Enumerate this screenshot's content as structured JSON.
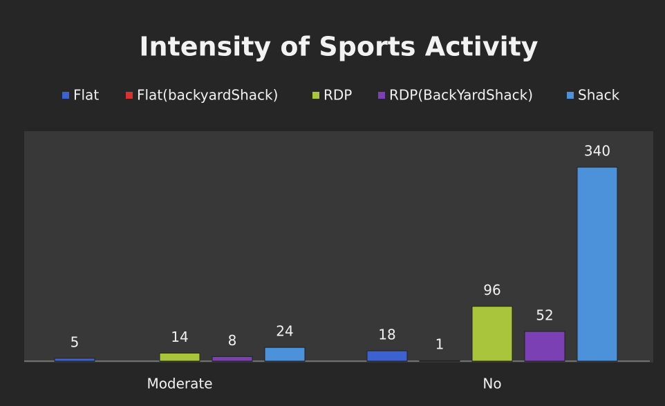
{
  "chart_data": {
    "type": "bar",
    "title": "Intensity of Sports Activity",
    "categories": [
      "Moderate",
      "No"
    ],
    "series": [
      {
        "name": "Flat",
        "color": "#3b62d0",
        "values": [
          5,
          18
        ]
      },
      {
        "name": "Flat(backyardShack)",
        "color": "#d63232",
        "values": [
          null,
          1
        ]
      },
      {
        "name": "RDP",
        "color": "#a9c53b",
        "values": [
          14,
          96
        ]
      },
      {
        "name": "RDP(BackYardShack)",
        "color": "#7b40b3",
        "values": [
          8,
          52
        ]
      },
      {
        "name": "Shack",
        "color": "#4b92da",
        "values": [
          24,
          340
        ]
      }
    ],
    "legend": "top"
  }
}
